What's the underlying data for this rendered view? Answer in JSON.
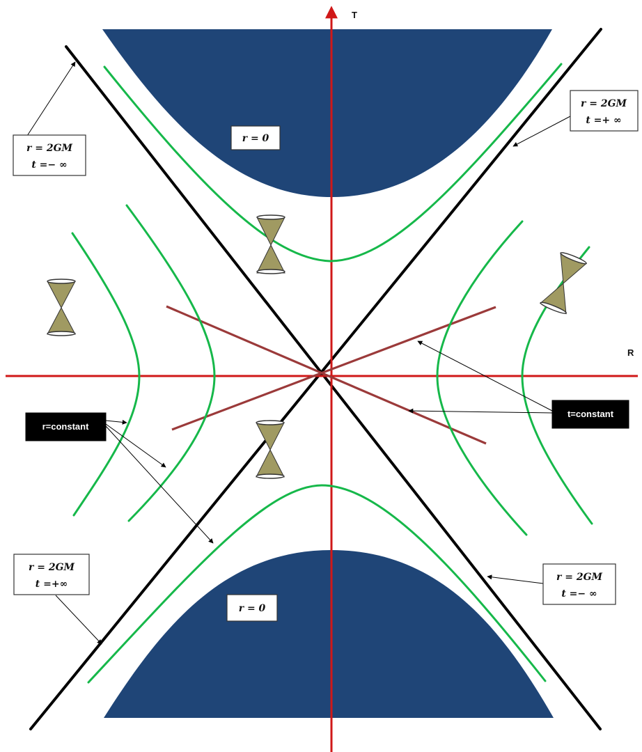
{
  "axes": {
    "t_label": "T",
    "r_label": "R"
  },
  "singularities": {
    "top": {
      "label": "r = 0"
    },
    "bottom": {
      "label": "r = 0"
    }
  },
  "horizon_labels": {
    "top_left": {
      "line1": "r = 2GM",
      "line2": "t =− ∞"
    },
    "top_right": {
      "line1": "r = 2GM",
      "line2": "t =+ ∞"
    },
    "bottom_left": {
      "line1": "r = 2GM",
      "line2": "t =+∞"
    },
    "bottom_right": {
      "line1": "r = 2GM",
      "line2": "t =− ∞"
    }
  },
  "curve_labels": {
    "r_constant": "r=constant",
    "t_constant": "t=constant"
  },
  "colors": {
    "singularity": "#1f4577",
    "axis": "#d01818",
    "horizon": "#000000",
    "r_constant_curve": "#16b84a",
    "t_constant_line": "#9b3a3a",
    "light_cone": "#a09a62"
  }
}
